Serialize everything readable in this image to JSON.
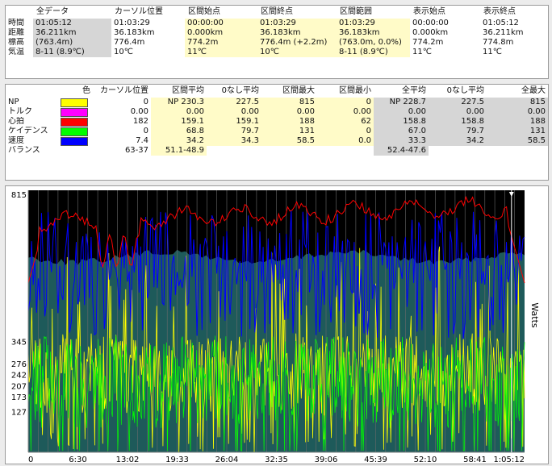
{
  "summary": {
    "columns": [
      "全データ",
      "カーソル位置",
      "区間始点",
      "区間終点",
      "区間範囲",
      "表示始点",
      "表示終点"
    ],
    "rows": [
      {
        "label": "時間",
        "values": [
          "01:05:12",
          "01:03:29",
          "00:00:00",
          "01:03:29",
          "01:03:29",
          "00:00:00",
          "01:05:12"
        ]
      },
      {
        "label": "距離",
        "values": [
          "36.211km",
          "36.183km",
          "0.000km",
          "36.183km",
          "36.183km",
          "0.000km",
          "36.211km"
        ]
      },
      {
        "label": "標高",
        "values": [
          "(763.4m)",
          "776.4m",
          "774.2m",
          "776.4m (+2.2m)",
          "(763.0m, 0.0%)",
          "774.2m",
          "774.8m"
        ]
      },
      {
        "label": "気温",
        "values": [
          "8-11 (8.9℃)",
          "10℃",
          "11℃",
          "10℃",
          "8-11 (8.9℃)",
          "11℃",
          "11℃"
        ]
      }
    ]
  },
  "stats": {
    "columns": [
      "色",
      "カーソル位置",
      "区間平均",
      "0なし平均",
      "区間最大",
      "区間最小",
      "全平均",
      "0なし平均",
      "全最大"
    ],
    "rows": [
      {
        "label": "NP",
        "color": "#ffff00",
        "values": [
          "0",
          "NP 230.3",
          "227.5",
          "815",
          "0",
          "NP 228.7",
          "227.5",
          "815"
        ]
      },
      {
        "label": "トルク",
        "color": "#ff00ff",
        "values": [
          "0.00",
          "0.00",
          "0.00",
          "0.00",
          "0.00",
          "0.00",
          "0.00",
          "0.00"
        ]
      },
      {
        "label": "心拍",
        "color": "#ff0000",
        "values": [
          "182",
          "159.1",
          "159.1",
          "188",
          "62",
          "158.8",
          "158.8",
          "188"
        ]
      },
      {
        "label": "ケイデンス",
        "color": "#00ff00",
        "values": [
          "0",
          "68.8",
          "79.7",
          "131",
          "0",
          "67.0",
          "79.7",
          "131"
        ]
      },
      {
        "label": "速度",
        "color": "#0000ff",
        "values": [
          "7.4",
          "34.2",
          "34.3",
          "58.5",
          "0.0",
          "33.3",
          "34.2",
          "58.5"
        ]
      },
      {
        "label": "バランス",
        "color": "",
        "values": [
          "63-37",
          "51.1-48.9",
          "",
          "",
          "",
          "52.4-47.6",
          "",
          ""
        ]
      }
    ]
  },
  "chart_data": {
    "type": "line",
    "ylabel": "Watts",
    "y_ticks": [
      "815",
      "345",
      "276",
      "242",
      "207",
      "173",
      "127"
    ],
    "x_ticks": [
      "0",
      "6:30",
      "13:02",
      "19:33",
      "26:04",
      "32:35",
      "39:06",
      "45:39",
      "52:10",
      "58:41",
      "1:05:12"
    ],
    "cursor_time": "1:03:29",
    "colors": {
      "power": "#ffff00",
      "cadence": "#00ff00",
      "speed": "#0000ff",
      "heart_rate": "#ff0000",
      "elevation": "#1e5a5a",
      "background": "#000000"
    }
  }
}
